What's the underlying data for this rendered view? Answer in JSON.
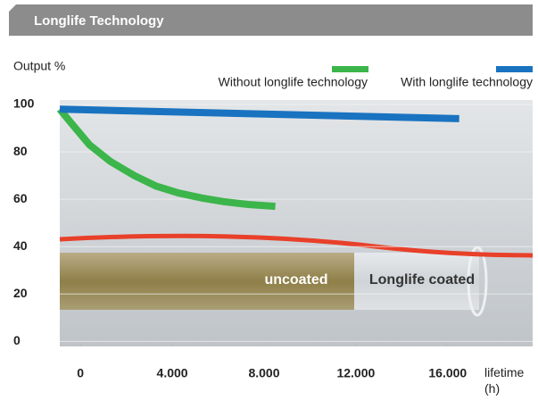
{
  "header": {
    "title": "Longlife Technology"
  },
  "chart_data": {
    "type": "line",
    "y_label": "Output %",
    "x_label": "lifetime (h)",
    "xlim": [
      -900,
      19700
    ],
    "ylim": [
      -1,
      100
    ],
    "xticks": [
      0,
      {
        "value": 4000,
        "label": "4.000"
      },
      {
        "value": 8000,
        "label": "8.000"
      },
      {
        "value": 12000,
        "label": "12.000"
      },
      {
        "value": 16000,
        "label": "16.000"
      }
    ],
    "yticks": [
      0,
      20,
      40,
      60,
      80,
      100
    ],
    "grid": true,
    "series": [
      {
        "name": "Without longlife technology",
        "color": "#3cb54a",
        "x": [
          -900,
          -390,
          390,
          1300,
          2340,
          3300,
          4280,
          5300,
          6230,
          7300,
          8490
        ],
        "values": [
          98,
          92,
          83,
          76,
          70,
          65.5,
          62.6,
          60.5,
          59,
          57.8,
          57
        ]
      },
      {
        "name": "With longlife technology",
        "color": "#1a73c0",
        "x": [
          -900,
          16500
        ],
        "values": [
          98,
          94
        ]
      }
    ],
    "annotations": [
      "uncoated",
      "Longlife coated"
    ]
  }
}
